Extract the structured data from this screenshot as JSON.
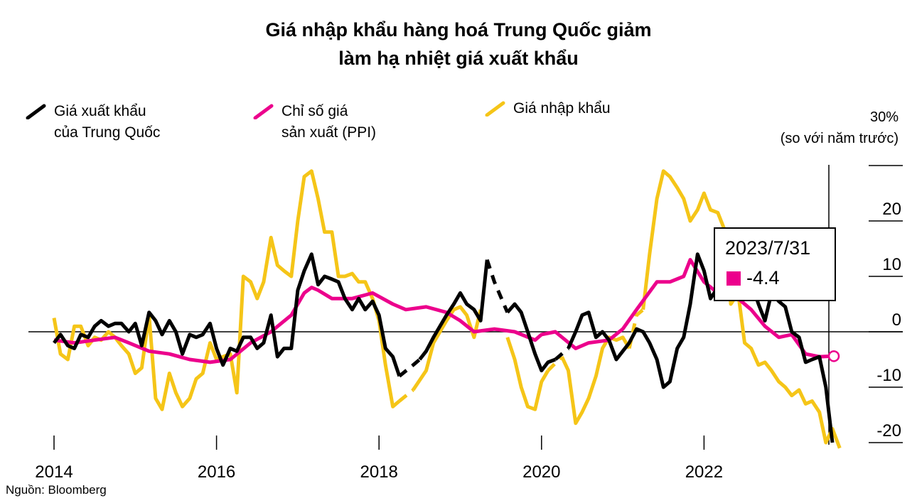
{
  "title_line1": "Giá nhập khẩu hàng hoá Trung Quốc giảm",
  "title_line2": "làm hạ nhiệt giá xuất khẩu",
  "legend": [
    {
      "line1": "Giá xuất khẩu",
      "line2": "của Trung Quốc",
      "color": "#000000"
    },
    {
      "line1": "Chỉ số giá",
      "line2": "sản xuất (PPI)",
      "color": "#ec008c"
    },
    {
      "line1": "Giá nhập khẩu",
      "line2": "",
      "color": "#f5c518"
    }
  ],
  "unit_top": "30%",
  "unit_label": "(so với năm trước)",
  "source": "Nguồn: Bloomberg",
  "tooltip": {
    "date": "2023/7/31",
    "value": "-4.4"
  },
  "chart_data": {
    "type": "line",
    "title": "Giá nhập khẩu hàng hoá Trung Quốc giảm làm hạ nhiệt giá xuất khẩu",
    "xlabel": "",
    "ylabel": "(so với năm trước)",
    "xlim": [
      2014.0,
      2023.9
    ],
    "ylim": [
      -20,
      30
    ],
    "x_ticks": [
      2014,
      2016,
      2018,
      2020,
      2022
    ],
    "y_ticks": [
      30,
      20,
      10,
      0,
      -10,
      -20
    ],
    "y_tick_labels": [
      "30%",
      "20",
      "10",
      "0",
      "-10",
      "-20"
    ],
    "series": [
      {
        "name": "Giá xuất khẩu của Trung Quốc",
        "color": "#000000",
        "points": [
          [
            2014.0,
            -2
          ],
          [
            2014.08,
            -0.5
          ],
          [
            2014.17,
            -2.5
          ],
          [
            2014.25,
            -3
          ],
          [
            2014.33,
            -0.5
          ],
          [
            2014.42,
            -1
          ],
          [
            2014.5,
            1
          ],
          [
            2014.58,
            2
          ],
          [
            2014.67,
            1
          ],
          [
            2014.75,
            1.5
          ],
          [
            2014.83,
            1.5
          ],
          [
            2014.92,
            0
          ],
          [
            2015.0,
            1.5
          ],
          [
            2015.08,
            -2.5
          ],
          [
            2015.17,
            3.5
          ],
          [
            2015.25,
            2
          ],
          [
            2015.33,
            -0.5
          ],
          [
            2015.42,
            2
          ],
          [
            2015.5,
            0
          ],
          [
            2015.58,
            -4
          ],
          [
            2015.67,
            -0.5
          ],
          [
            2015.75,
            -1
          ],
          [
            2015.83,
            -0.5
          ],
          [
            2015.92,
            1.5
          ],
          [
            2016.0,
            -3
          ],
          [
            2016.08,
            -6
          ],
          [
            2016.17,
            -3
          ],
          [
            2016.25,
            -3.5
          ],
          [
            2016.33,
            -1
          ],
          [
            2016.42,
            -1
          ],
          [
            2016.5,
            -3
          ],
          [
            2016.58,
            -2
          ],
          [
            2016.67,
            3
          ],
          [
            2016.75,
            -4.5
          ],
          [
            2016.83,
            -3
          ],
          [
            2016.92,
            -3
          ],
          [
            2017.0,
            7.5
          ],
          [
            2017.08,
            11
          ],
          [
            2017.17,
            14
          ],
          [
            2017.25,
            8.5
          ],
          [
            2017.33,
            10
          ],
          [
            2017.42,
            9.5
          ],
          [
            2017.5,
            9
          ],
          [
            2017.58,
            6
          ],
          [
            2017.67,
            4
          ],
          [
            2017.75,
            6
          ],
          [
            2017.83,
            4
          ],
          [
            2017.92,
            5.5
          ],
          [
            2018.0,
            3
          ],
          [
            2018.08,
            -3
          ],
          [
            2018.17,
            -4.5
          ],
          [
            2018.25,
            -8
          ]
        ],
        "dashed": [
          [
            2018.25,
            -8
          ],
          [
            2018.42,
            -6
          ],
          [
            2018.5,
            -5
          ]
        ],
        "points2": [
          [
            2018.5,
            -5
          ],
          [
            2018.58,
            -3.5
          ],
          [
            2018.67,
            -1
          ],
          [
            2018.75,
            1
          ],
          [
            2018.83,
            3
          ],
          [
            2018.92,
            5
          ],
          [
            2019.0,
            7
          ],
          [
            2019.08,
            5
          ],
          [
            2019.17,
            4
          ],
          [
            2019.25,
            2
          ],
          [
            2019.33,
            13
          ]
        ],
        "dashed2": [
          [
            2019.33,
            13
          ],
          [
            2019.42,
            9
          ],
          [
            2019.58,
            3.5
          ]
        ],
        "points3": [
          [
            2019.58,
            3.5
          ],
          [
            2019.67,
            5
          ],
          [
            2019.75,
            3.5
          ],
          [
            2019.83,
            0
          ],
          [
            2019.92,
            -4
          ],
          [
            2020.0,
            -7
          ],
          [
            2020.08,
            -5.5
          ],
          [
            2020.17,
            -5
          ]
        ],
        "dashed3": [
          [
            2020.17,
            -5
          ],
          [
            2020.33,
            -3
          ]
        ],
        "points4": [
          [
            2020.33,
            -3
          ],
          [
            2020.42,
            0
          ],
          [
            2020.5,
            3
          ],
          [
            2020.58,
            3.5
          ],
          [
            2020.67,
            -1
          ],
          [
            2020.75,
            0
          ],
          [
            2020.83,
            -1.5
          ],
          [
            2020.92,
            -5
          ],
          [
            2021.0,
            -3.5
          ],
          [
            2021.08,
            -2
          ],
          [
            2021.17,
            0.5
          ],
          [
            2021.25,
            0
          ],
          [
            2021.33,
            -2
          ],
          [
            2021.42,
            -5
          ],
          [
            2021.5,
            -10
          ],
          [
            2021.58,
            -9
          ],
          [
            2021.67,
            -3
          ],
          [
            2021.75,
            -1
          ],
          [
            2021.83,
            5
          ],
          [
            2021.92,
            14
          ],
          [
            2022.0,
            11
          ],
          [
            2022.08,
            6
          ],
          [
            2022.17,
            8
          ],
          [
            2022.25,
            7
          ],
          [
            2022.33,
            12
          ],
          [
            2022.42,
            15
          ],
          [
            2022.5,
            12
          ],
          [
            2022.58,
            9
          ],
          [
            2022.67,
            5
          ],
          [
            2022.75,
            2
          ],
          [
            2022.83,
            7
          ],
          [
            2022.92,
            5.5
          ],
          [
            2023.0,
            4.5
          ],
          [
            2023.08,
            0
          ],
          [
            2023.17,
            -1
          ],
          [
            2023.25,
            -5.5
          ],
          [
            2023.33,
            -5
          ],
          [
            2023.42,
            -4.5
          ],
          [
            2023.5,
            -10
          ],
          [
            2023.58,
            -20
          ]
        ]
      },
      {
        "name": "Chỉ số giá sản xuất (PPI)",
        "color": "#ec008c",
        "points": [
          [
            2014.0,
            -1.5
          ],
          [
            2014.25,
            -2
          ],
          [
            2014.5,
            -1.5
          ],
          [
            2014.75,
            -1
          ],
          [
            2014.92,
            -2
          ],
          [
            2015.17,
            -3.5
          ],
          [
            2015.42,
            -4
          ],
          [
            2015.67,
            -5
          ],
          [
            2015.92,
            -5.5
          ],
          [
            2016.17,
            -5
          ],
          [
            2016.42,
            -2
          ],
          [
            2016.67,
            0
          ],
          [
            2016.92,
            3
          ],
          [
            2017.08,
            7
          ],
          [
            2017.17,
            8
          ],
          [
            2017.25,
            7.5
          ],
          [
            2017.42,
            6
          ],
          [
            2017.67,
            6
          ],
          [
            2017.92,
            7
          ],
          [
            2018.17,
            5
          ],
          [
            2018.33,
            4
          ],
          [
            2018.58,
            4.5
          ],
          [
            2018.83,
            3.5
          ],
          [
            2019.0,
            2
          ],
          [
            2019.17,
            0
          ],
          [
            2019.42,
            0.5
          ],
          [
            2019.67,
            0
          ],
          [
            2019.92,
            -1.5
          ],
          [
            2020.0,
            -0.5
          ],
          [
            2020.17,
            0
          ],
          [
            2020.42,
            -3
          ],
          [
            2020.58,
            -2
          ],
          [
            2020.83,
            -1.5
          ],
          [
            2021.0,
            0.5
          ],
          [
            2021.17,
            4
          ],
          [
            2021.42,
            9
          ],
          [
            2021.58,
            9
          ],
          [
            2021.75,
            10
          ],
          [
            2021.83,
            13
          ],
          [
            2022.0,
            9
          ],
          [
            2022.17,
            7
          ],
          [
            2022.42,
            6
          ],
          [
            2022.58,
            4
          ],
          [
            2022.75,
            1
          ],
          [
            2022.92,
            -1
          ],
          [
            2023.08,
            -0.5
          ],
          [
            2023.25,
            -4
          ],
          [
            2023.42,
            -4.5
          ],
          [
            2023.58,
            -4.4
          ]
        ]
      },
      {
        "name": "Giá nhập khẩu",
        "color": "#f5c518",
        "points": [
          [
            2014.0,
            2.5
          ],
          [
            2014.08,
            -4
          ],
          [
            2014.17,
            -5
          ],
          [
            2014.25,
            1
          ],
          [
            2014.33,
            1
          ],
          [
            2014.42,
            -2.5
          ],
          [
            2014.5,
            -1
          ],
          [
            2014.58,
            -1.5
          ],
          [
            2014.67,
            0
          ],
          [
            2014.75,
            -1
          ],
          [
            2014.83,
            -2.5
          ],
          [
            2014.92,
            -4
          ],
          [
            2015.0,
            -7.5
          ],
          [
            2015.08,
            -6.5
          ],
          [
            2015.17,
            3
          ],
          [
            2015.25,
            -12
          ],
          [
            2015.33,
            -14
          ],
          [
            2015.42,
            -7.5
          ],
          [
            2015.5,
            -11
          ],
          [
            2015.58,
            -13.5
          ],
          [
            2015.67,
            -12
          ],
          [
            2015.75,
            -8.5
          ],
          [
            2015.83,
            -7.5
          ],
          [
            2015.92,
            -2
          ],
          [
            2016.0,
            -5
          ],
          [
            2016.08,
            -4.5
          ],
          [
            2016.17,
            -4
          ],
          [
            2016.25,
            -11
          ],
          [
            2016.33,
            10
          ],
          [
            2016.42,
            9
          ],
          [
            2016.5,
            6
          ],
          [
            2016.58,
            9
          ],
          [
            2016.67,
            17
          ],
          [
            2016.75,
            12
          ],
          [
            2016.83,
            11
          ],
          [
            2016.92,
            10
          ],
          [
            2017.0,
            20
          ],
          [
            2017.08,
            28
          ],
          [
            2017.17,
            29
          ],
          [
            2017.25,
            24
          ],
          [
            2017.33,
            18
          ],
          [
            2017.42,
            18
          ],
          [
            2017.5,
            10
          ],
          [
            2017.58,
            10
          ],
          [
            2017.67,
            10.5
          ],
          [
            2017.75,
            9
          ],
          [
            2017.83,
            9
          ],
          [
            2017.92,
            6
          ],
          [
            2018.0,
            2
          ],
          [
            2018.08,
            -6
          ],
          [
            2018.17,
            -13.5
          ],
          [
            2018.25,
            -12.5
          ]
        ],
        "dashed": [
          [
            2018.25,
            -12.5
          ],
          [
            2018.42,
            -10.5
          ]
        ],
        "points2": [
          [
            2018.42,
            -10.5
          ],
          [
            2018.58,
            -7
          ],
          [
            2018.67,
            -2
          ],
          [
            2018.75,
            0
          ],
          [
            2018.83,
            2
          ],
          [
            2018.92,
            4
          ],
          [
            2019.0,
            4.5
          ],
          [
            2019.08,
            3
          ],
          [
            2019.17,
            -1
          ],
          [
            2019.25,
            4
          ]
        ],
        "points3": [
          [
            2019.58,
            -1
          ],
          [
            2019.67,
            -5
          ],
          [
            2019.75,
            -10
          ],
          [
            2019.83,
            -13.5
          ],
          [
            2019.92,
            -14
          ],
          [
            2020.0,
            -9
          ],
          [
            2020.08,
            -7
          ]
        ],
        "dashed3": [
          [
            2020.08,
            -7
          ],
          [
            2020.25,
            -4.5
          ]
        ],
        "points4": [
          [
            2020.25,
            -4.5
          ],
          [
            2020.33,
            -7
          ],
          [
            2020.42,
            -16.5
          ],
          [
            2020.5,
            -14.5
          ],
          [
            2020.58,
            -12
          ],
          [
            2020.67,
            -8
          ],
          [
            2020.75,
            -3
          ],
          [
            2020.83,
            -1
          ],
          [
            2020.92,
            -1.5
          ],
          [
            2021.0,
            -1
          ],
          [
            2021.08,
            -3
          ]
        ],
        "dashed4": [
          [
            2021.08,
            -3
          ],
          [
            2021.17,
            3
          ],
          [
            2021.25,
            4
          ]
        ],
        "points5": [
          [
            2021.25,
            4
          ],
          [
            2021.33,
            14
          ],
          [
            2021.42,
            24
          ],
          [
            2021.5,
            29
          ],
          [
            2021.58,
            28
          ],
          [
            2021.67,
            26
          ],
          [
            2021.75,
            24
          ],
          [
            2021.83,
            20
          ],
          [
            2021.92,
            22
          ],
          [
            2022.0,
            25
          ],
          [
            2022.08,
            22
          ],
          [
            2022.17,
            21.5
          ],
          [
            2022.25,
            18.5
          ],
          [
            2022.33,
            5
          ],
          [
            2022.42,
            7
          ],
          [
            2022.5,
            -2
          ],
          [
            2022.58,
            -3
          ],
          [
            2022.67,
            -6
          ],
          [
            2022.75,
            -5.5
          ],
          [
            2022.83,
            -7
          ],
          [
            2022.92,
            -9
          ],
          [
            2023.0,
            -10
          ],
          [
            2023.08,
            -11.5
          ],
          [
            2023.17,
            -10.5
          ],
          [
            2023.25,
            -13
          ],
          [
            2023.33,
            -12.5
          ],
          [
            2023.42,
            -14.5
          ],
          [
            2023.5,
            -20
          ],
          [
            2023.58,
            -17.5
          ],
          [
            2023.67,
            -21
          ]
        ]
      }
    ]
  }
}
